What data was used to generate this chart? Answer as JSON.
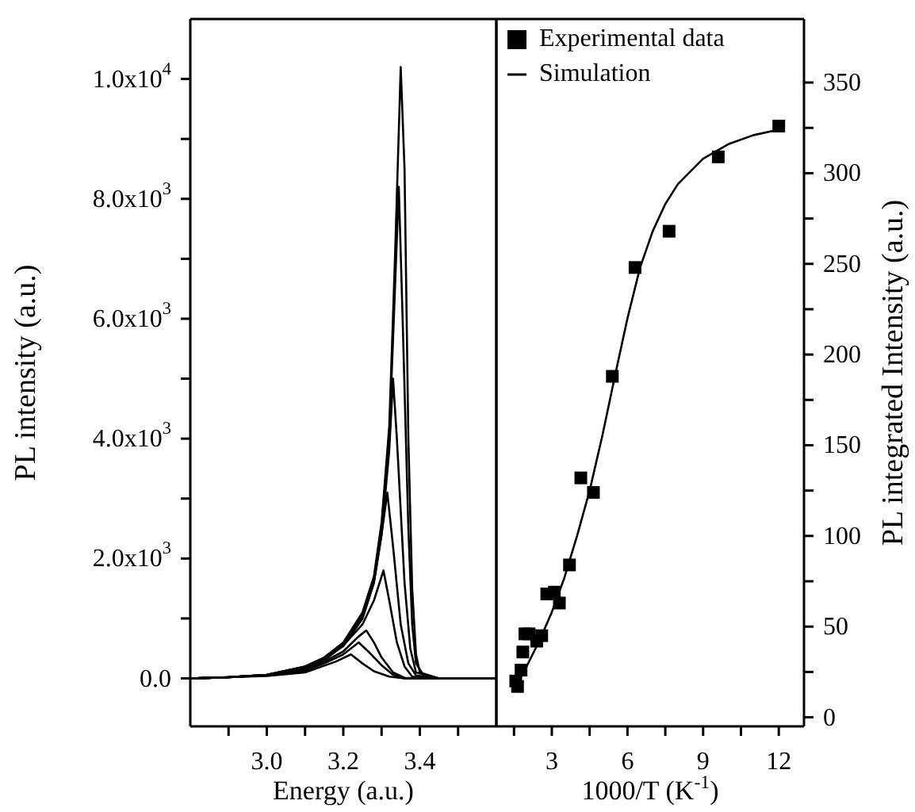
{
  "chart_data": [
    {
      "type": "line",
      "xlabel": "Energy (a.u.)",
      "ylabel": "PL intensity (a.u.)",
      "xlim": [
        2.8,
        3.6
      ],
      "ylim": [
        -800,
        11000
      ],
      "xticks": [
        {
          "value": 2.9,
          "label": null
        },
        {
          "value": 3.0,
          "label": "3.0"
        },
        {
          "value": 3.1,
          "label": null
        },
        {
          "value": 3.2,
          "label": "3.2"
        },
        {
          "value": 3.3,
          "label": null
        },
        {
          "value": 3.4,
          "label": "3.4"
        },
        {
          "value": 3.5,
          "label": null
        }
      ],
      "yticks": [
        {
          "value": 0,
          "label": "0.0"
        },
        {
          "value": 1000,
          "label": null
        },
        {
          "value": 2000,
          "label": "2.0x10$^{3}$"
        },
        {
          "value": 3000,
          "label": null
        },
        {
          "value": 4000,
          "label": "4.0x10$^{3}$"
        },
        {
          "value": 5000,
          "label": null
        },
        {
          "value": 6000,
          "label": "6.0x10$^{3}$"
        },
        {
          "value": 7000,
          "label": null
        },
        {
          "value": 8000,
          "label": "8.0x10$^{3}$"
        },
        {
          "value": 9000,
          "label": null
        },
        {
          "value": 10000,
          "label": "1.0x10$^{4}$"
        }
      ],
      "legend": false,
      "series": [
        {
          "color": "#000000",
          "x": [
            2.8,
            2.9,
            3.0,
            3.1,
            3.15,
            3.2,
            3.25,
            3.28,
            3.3,
            3.32,
            3.335,
            3.35,
            3.36,
            3.37,
            3.38,
            3.39,
            3.4,
            3.45,
            3.6
          ],
          "values": [
            0,
            20,
            60,
            200,
            350,
            600,
            1100,
            1700,
            2600,
            4200,
            7000,
            10200,
            8500,
            4000,
            1500,
            400,
            100,
            0,
            0
          ]
        },
        {
          "color": "#000000",
          "x": [
            2.8,
            2.9,
            3.0,
            3.1,
            3.15,
            3.2,
            3.25,
            3.28,
            3.3,
            3.32,
            3.335,
            3.345,
            3.355,
            3.37,
            3.38,
            3.39,
            3.41,
            3.45,
            3.6
          ],
          "values": [
            0,
            20,
            60,
            200,
            340,
            580,
            1050,
            1650,
            2500,
            4000,
            6500,
            8200,
            6000,
            2500,
            900,
            250,
            50,
            0,
            0
          ]
        },
        {
          "color": "#000000",
          "x": [
            2.8,
            2.9,
            3.0,
            3.1,
            3.15,
            3.2,
            3.25,
            3.28,
            3.3,
            3.32,
            3.33,
            3.34,
            3.36,
            3.375,
            3.39,
            3.45,
            3.6
          ],
          "values": [
            0,
            20,
            60,
            190,
            330,
            560,
            1000,
            1600,
            2400,
            3800,
            5000,
            4000,
            1600,
            500,
            100,
            0,
            0
          ]
        },
        {
          "color": "#000000",
          "x": [
            2.8,
            2.9,
            3.0,
            3.1,
            3.15,
            3.2,
            3.25,
            3.28,
            3.3,
            3.315,
            3.33,
            3.35,
            3.37,
            3.39,
            3.45,
            3.6
          ],
          "values": [
            0,
            20,
            60,
            180,
            320,
            540,
            1000,
            1600,
            2400,
            3100,
            2200,
            900,
            250,
            50,
            0,
            0
          ]
        },
        {
          "color": "#000000",
          "x": [
            2.8,
            2.9,
            3.0,
            3.1,
            3.15,
            3.2,
            3.25,
            3.28,
            3.305,
            3.32,
            3.34,
            3.36,
            3.38,
            3.45,
            3.6
          ],
          "values": [
            0,
            20,
            60,
            170,
            300,
            550,
            900,
            1300,
            1800,
            1300,
            600,
            200,
            30,
            0,
            0
          ]
        },
        {
          "color": "#000000",
          "x": [
            2.8,
            2.9,
            3.0,
            3.1,
            3.15,
            3.2,
            3.24,
            3.26,
            3.28,
            3.3,
            3.33,
            3.36,
            3.45,
            3.6
          ],
          "values": [
            0,
            20,
            50,
            150,
            280,
            450,
            700,
            800,
            600,
            350,
            100,
            10,
            0,
            0
          ]
        },
        {
          "color": "#000000",
          "x": [
            2.8,
            2.9,
            3.0,
            3.1,
            3.15,
            3.2,
            3.24,
            3.27,
            3.3,
            3.33,
            3.36,
            3.45,
            3.6
          ],
          "values": [
            0,
            20,
            50,
            130,
            250,
            400,
            600,
            420,
            220,
            60,
            0,
            0,
            0
          ]
        },
        {
          "color": "#000000",
          "x": [
            2.8,
            2.9,
            3.0,
            3.1,
            3.18,
            3.22,
            3.25,
            3.28,
            3.32,
            3.36,
            3.45,
            3.6
          ],
          "values": [
            0,
            20,
            40,
            100,
            280,
            400,
            250,
            120,
            30,
            0,
            0,
            0
          ]
        }
      ]
    },
    {
      "type": "scatter",
      "xlabel": "1000/T (K$^{-1}$)",
      "ylabel": "PL integrated Intensity (a.u.)",
      "xlim": [
        0.8,
        13
      ],
      "ylim": [
        -5,
        385
      ],
      "xticks": [
        {
          "value": 1.5,
          "label": null
        },
        3,
        {
          "value": 4.5,
          "label": null
        },
        6,
        {
          "value": 7.5,
          "label": null
        },
        9,
        {
          "value": 10.5,
          "label": null
        },
        12
      ],
      "yticks": [
        0,
        {
          "value": 25,
          "label": null
        },
        50,
        {
          "value": 75,
          "label": null
        },
        100,
        {
          "value": 125,
          "label": null
        },
        150,
        {
          "value": 175,
          "label": null
        },
        200,
        {
          "value": 225,
          "label": null
        },
        250,
        {
          "value": 275,
          "label": null
        },
        300,
        {
          "value": 325,
          "label": null
        },
        350
      ],
      "legend": "top left",
      "series": [
        {
          "name": "Experimental data",
          "type": "scatter",
          "marker": "square",
          "color": "#000000",
          "x": [
            1.57,
            1.64,
            1.78,
            1.85,
            1.93,
            2.1,
            2.4,
            2.6,
            2.8,
            3.1,
            3.3,
            3.7,
            4.15,
            4.65,
            5.4,
            6.3,
            7.65,
            9.6,
            12
          ],
          "values": [
            20,
            17,
            26,
            36,
            46,
            46,
            42,
            45,
            68,
            69,
            63,
            84,
            132,
            124,
            188,
            248,
            268,
            309,
            326
          ]
        },
        {
          "name": "Simulation",
          "type": "line",
          "color": "#000000",
          "x": [
            1.5,
            2,
            2.5,
            3,
            3.5,
            4,
            4.5,
            5,
            5.5,
            6,
            6.5,
            7,
            7.5,
            8,
            9,
            10,
            11,
            12
          ],
          "values": [
            15,
            28,
            42,
            58,
            77,
            100,
            125,
            155,
            188,
            220,
            248,
            268,
            283,
            294,
            308,
            316,
            321,
            324
          ]
        }
      ]
    }
  ]
}
